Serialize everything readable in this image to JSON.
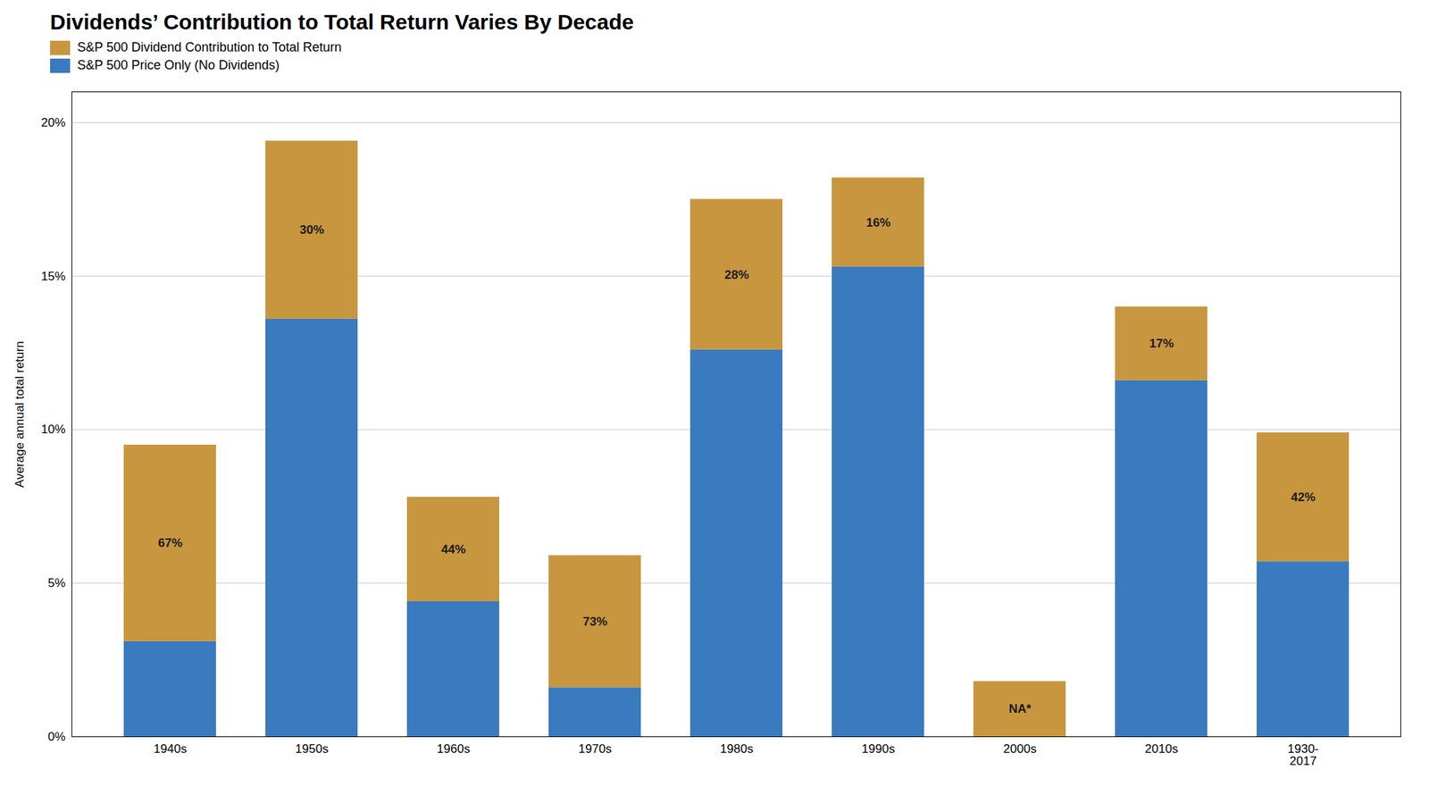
{
  "chart_data": {
    "type": "bar",
    "stacked": true,
    "title": "Dividends’ Contribution to Total Return Varies By Decade",
    "ylabel": "Average annual total return",
    "categories": [
      "1940s",
      "1950s",
      "1960s",
      "1970s",
      "1980s",
      "1990s",
      "2000s",
      "2010s",
      "1930-\n2017"
    ],
    "series": [
      {
        "name": "S&P 500 Price Only (No Dividends)",
        "color": "#3a7abf",
        "values": [
          3.1,
          13.6,
          4.4,
          1.6,
          12.6,
          15.3,
          0.0,
          11.6,
          5.7
        ]
      },
      {
        "name": "S&P 500 Dividend Contribution to Total Return",
        "color": "#c8963e",
        "values": [
          6.4,
          5.8,
          3.4,
          4.3,
          4.9,
          2.9,
          1.8,
          2.4,
          4.2
        ],
        "segment_labels": [
          "67%",
          "30%",
          "44%",
          "73%",
          "28%",
          "16%",
          "NA*",
          "17%",
          "42%"
        ]
      }
    ],
    "ylim": [
      0,
      21
    ],
    "yticks": [
      {
        "value": 0,
        "label": "0%"
      },
      {
        "value": 5,
        "label": "5%"
      },
      {
        "value": 10,
        "label": "10%"
      },
      {
        "value": 15,
        "label": "15%"
      },
      {
        "value": 20,
        "label": "20%"
      }
    ],
    "grid": true,
    "legend": "top"
  }
}
